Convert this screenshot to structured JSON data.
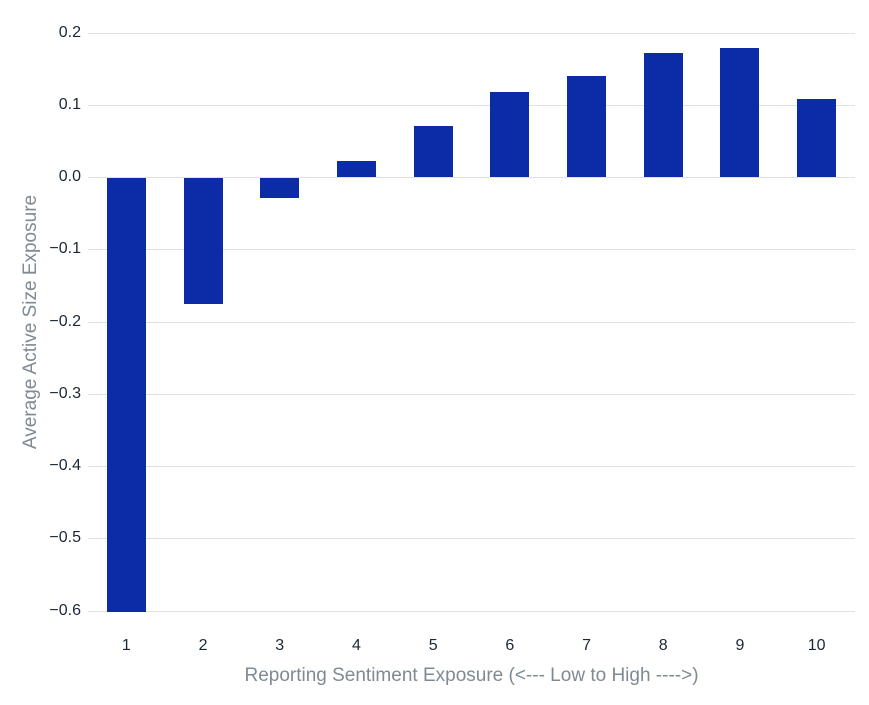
{
  "chart_data": {
    "type": "bar",
    "categories": [
      "1",
      "2",
      "3",
      "4",
      "5",
      "6",
      "7",
      "8",
      "9",
      "10"
    ],
    "values": [
      -0.6,
      -0.175,
      -0.028,
      0.022,
      0.07,
      0.117,
      0.14,
      0.172,
      0.179,
      0.108
    ],
    "title": "",
    "xlabel": "Reporting Sentiment Exposure (<--- Low to High ---->)",
    "ylabel": "Average Active Size Exposure",
    "ylim": [
      -0.6,
      0.2
    ],
    "yticks": [
      0.2,
      0.1,
      0.0,
      -0.1,
      -0.2,
      -0.3,
      -0.4,
      -0.5,
      -0.6
    ],
    "ytick_labels": [
      "0.2",
      "0.1",
      "0.0",
      "−0.1",
      "−0.2",
      "−0.3",
      "−0.4",
      "−0.5",
      "−0.6"
    ],
    "grid": true,
    "legend": "none"
  },
  "colors": {
    "bar": "#0b2ba7",
    "grid": "#e0e0e0",
    "tick_text": "#1c2735",
    "axis_title_text": "#7f8a93",
    "background": "#ffffff"
  }
}
